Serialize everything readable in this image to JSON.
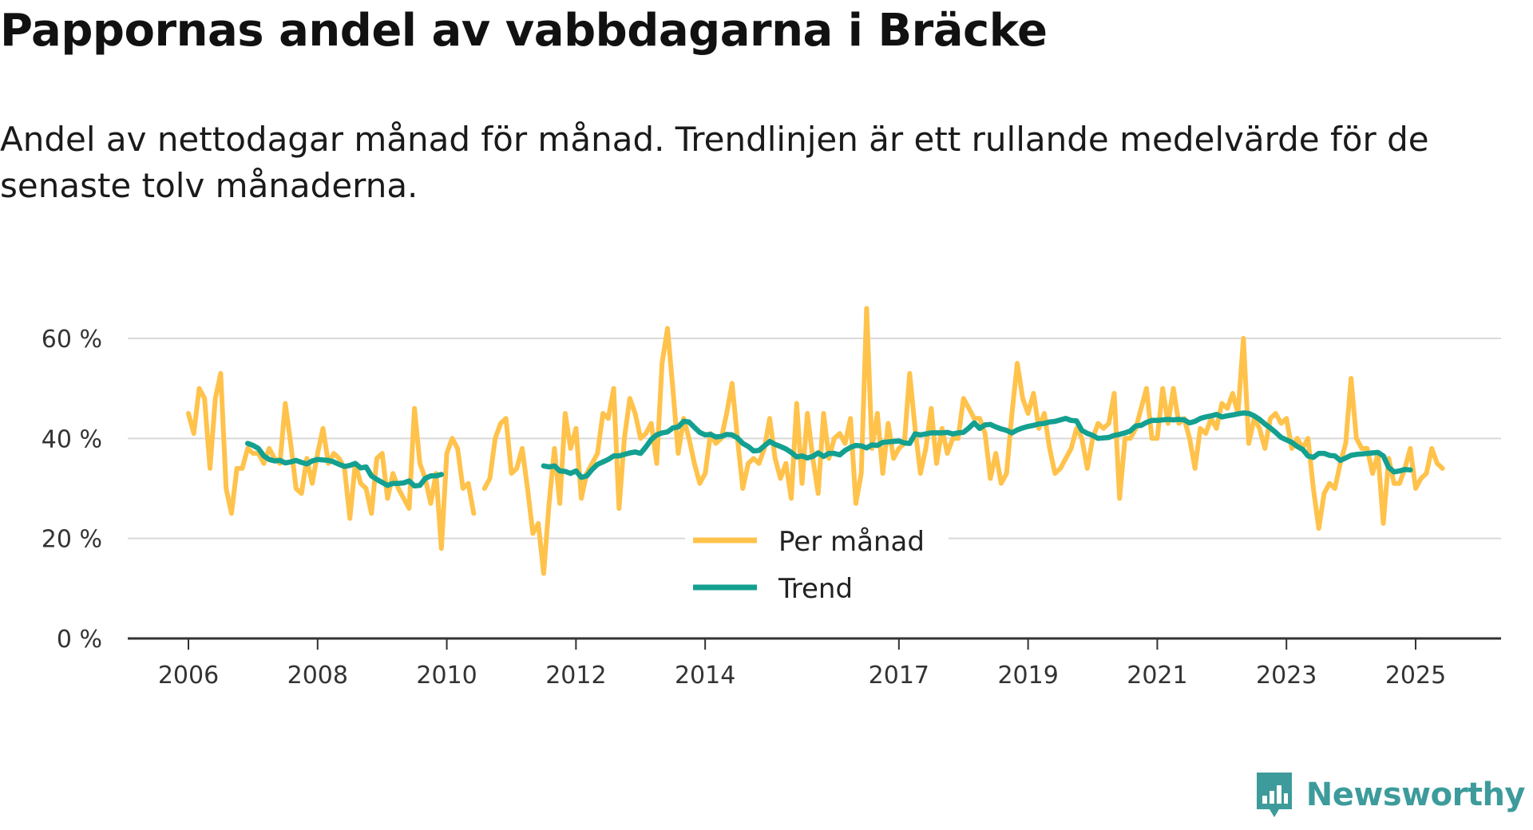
{
  "title": "Pappornas andel av vabbdagarna i Bräcke",
  "subtitle": "Andel av nettodagar månad för månad. Trendlinjen är ett rullande medelvärde för de senaste tolv månaderna.",
  "brand": "Newsworthy",
  "colors": {
    "monthly": "#FFC24B",
    "trend": "#13A090",
    "grid": "#d9d9d9",
    "axis": "#333333",
    "brand": "#3d9b9b"
  },
  "chart_data": {
    "type": "line",
    "title": "Pappornas andel av vabbdagarna i Bräcke",
    "xlabel": "",
    "ylabel": "",
    "ylim": [
      0,
      66
    ],
    "xlim": [
      2005.75,
      2026.4
    ],
    "y_ticks": [
      0,
      20,
      40,
      60
    ],
    "y_tick_labels": [
      "0 %",
      "20 %",
      "40 %",
      "60 %"
    ],
    "x_tick_labels": [
      "2006",
      "2008",
      "2010",
      "2012",
      "2014",
      "2017",
      "2019",
      "2021",
      "2023",
      "2025"
    ],
    "x_tick_positions": [
      2006,
      2008,
      2010,
      2012,
      2014,
      2017,
      2019,
      2021,
      2023,
      2025
    ],
    "legend": {
      "position": "center",
      "entries": [
        "Per månad",
        "Trend"
      ]
    },
    "series": [
      {
        "name": "Per månad",
        "segments": [
          {
            "start": 2006.0,
            "values": [
              45,
              41,
              50,
              48,
              34,
              48,
              53,
              30,
              25,
              34,
              34,
              38,
              37,
              37,
              35,
              38,
              36,
              35,
              47,
              39,
              30,
              29,
              36,
              31,
              37,
              42,
              35,
              37,
              36,
              34,
              24,
              35,
              31,
              30,
              25,
              36,
              37,
              28,
              33,
              30,
              28,
              26,
              46,
              35,
              32,
              27,
              33,
              18,
              37,
              40,
              38,
              30,
              31,
              25
            ]
          },
          {
            "start": 2010.5833,
            "values": [
              30,
              32,
              40,
              43,
              44,
              33,
              34,
              38,
              30,
              21,
              23,
              13,
              27,
              38,
              27,
              45,
              38,
              42,
              28,
              33,
              35,
              37,
              45,
              44,
              50,
              26,
              40,
              48,
              45,
              40,
              41,
              43,
              35,
              55,
              62,
              50,
              37,
              44,
              40,
              35,
              31,
              33,
              41,
              39,
              40,
              45,
              51,
              40,
              30,
              35,
              36,
              35,
              38,
              44,
              36,
              32,
              35,
              28,
              47,
              31,
              45,
              36,
              29,
              45,
              36,
              40,
              41,
              39,
              44,
              27,
              33,
              66,
              38,
              45,
              33,
              43,
              36,
              38,
              39,
              53,
              42,
              33,
              38,
              46,
              35,
              42,
              37,
              40,
              40,
              48,
              46,
              44,
              44,
              41,
              32,
              37,
              31,
              33,
              45,
              55,
              48,
              45,
              49,
              42,
              45,
              38,
              33,
              34,
              36,
              38,
              42,
              40,
              34,
              40,
              43,
              42,
              43,
              49,
              28,
              40,
              40,
              42,
              46,
              50,
              40,
              40,
              50,
              43,
              50,
              43,
              44,
              40,
              34,
              42,
              41,
              44,
              42,
              47,
              46,
              49,
              45,
              60,
              39,
              44,
              42,
              38,
              44,
              45,
              43,
              44,
              38,
              40,
              38,
              40,
              30,
              22,
              29,
              31,
              30,
              35,
              39,
              52,
              40,
              38,
              38,
              33,
              37,
              23,
              36,
              31,
              31,
              34,
              38,
              30,
              32,
              33,
              38,
              35,
              34
            ]
          }
        ]
      },
      {
        "name": "Trend",
        "segments": [
          {
            "start": 2006.9167,
            "values": [
              39,
              38.6,
              38,
              36.5,
              35.8,
              35.5,
              35.6,
              35.1,
              35.3,
              35.6,
              35.2,
              34.9,
              35.5,
              35.8,
              35.7,
              35.6,
              35.3,
              34.8,
              34.4,
              34.6,
              35,
              34.1,
              34.3,
              32.5,
              31.8,
              31.2,
              30.6,
              31,
              31,
              31.1,
              31.5,
              30.5,
              30.6,
              32,
              32.5,
              32.5,
              32.8
            ]
          },
          {
            "start": 2011.5,
            "values": [
              34.5,
              34.3,
              34.5,
              33.5,
              33.4,
              33,
              33.5,
              32.2,
              32.5,
              33.8,
              34.8,
              35.3,
              35.8,
              36.5,
              36.5,
              36.8,
              37.1,
              37.3,
              37,
              38.3,
              39.8,
              40.7,
              41.1,
              41.3,
              42.1,
              42.3,
              43.4,
              43.3,
              42.2,
              41.2,
              40.7,
              40.8,
              40.3,
              40.4,
              40.8,
              40.7,
              40.1,
              39,
              38.4,
              37.5,
              37.6,
              38.5,
              39.4,
              38.8,
              38.4,
              37.9,
              37.2,
              36.3,
              36.5,
              36.1,
              36.4,
              37.1,
              36.4,
              37,
              37,
              36.7,
              37.6,
              38.2,
              38.6,
              38.5,
              38.1,
              38.7,
              38.6,
              39.2,
              39.3,
              39.4,
              39.5,
              39.1,
              39,
              40.9,
              40.7,
              40.9,
              41.1,
              41.1,
              41.1,
              41.2,
              40.9,
              41.1,
              41.2,
              42.1,
              43.1,
              42,
              42.7,
              42.8,
              42.3,
              41.9,
              41.6,
              41.1,
              41.7,
              42.1,
              42.4,
              42.6,
              42.9,
              43,
              43.3,
              43.4,
              43.7,
              44,
              43.6,
              43.5,
              41.6,
              41,
              40.6,
              40,
              40.1,
              40.2,
              40.6,
              40.8,
              41.1,
              41.5,
              42.5,
              42.6,
              43.2,
              43.6,
              43.6,
              43.7,
              43.8,
              43.7,
              43.8,
              43.7,
              43.1,
              43.4,
              44,
              44.3,
              44.5,
              44.8,
              44.3,
              44.5,
              44.7,
              44.9,
              45.1,
              45,
              44.5,
              43.8,
              42.9,
              42.1,
              41.2,
              40.2,
              39.7,
              39.2,
              38.4,
              37.8,
              36.5,
              36.2,
              37,
              37,
              36.6,
              36.5,
              35.6,
              36.1,
              36.6,
              36.8,
              36.9,
              37,
              37.1,
              37.2,
              36.5,
              34.2,
              33.3,
              33.5,
              33.8,
              33.7
            ]
          }
        ]
      }
    ]
  }
}
